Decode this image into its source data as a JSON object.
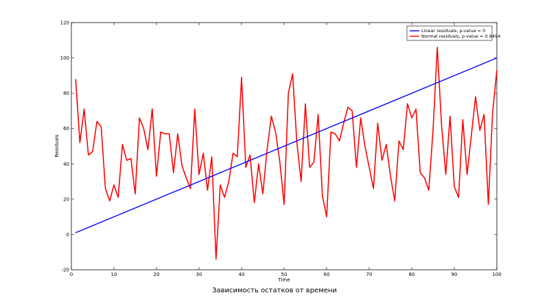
{
  "chart_data": {
    "type": "line",
    "title": "",
    "xlabel": "Time",
    "ylabel": "Residuals",
    "xlim": [
      0,
      100
    ],
    "ylim": [
      -20,
      120
    ],
    "x_ticks": [
      "0",
      "10",
      "20",
      "30",
      "40",
      "50",
      "60",
      "70",
      "80",
      "90",
      "100"
    ],
    "y_ticks": [
      "-20",
      "0",
      "20",
      "40",
      "60",
      "80",
      "100",
      "120"
    ],
    "grid": false,
    "legend_position": "top-right",
    "series": [
      {
        "name": "Linear residuals, p-value = 0",
        "color": "#0000ff",
        "x": [
          1,
          100
        ],
        "y": [
          1,
          100
        ]
      },
      {
        "name": "Normal residuals, p-value = 0.9494",
        "color": "#ff0000",
        "x": [
          1,
          2,
          3,
          4,
          5,
          6,
          7,
          8,
          9,
          10,
          11,
          12,
          13,
          14,
          15,
          16,
          17,
          18,
          19,
          20,
          21,
          22,
          23,
          24,
          25,
          26,
          27,
          28,
          29,
          30,
          31,
          32,
          33,
          34,
          35,
          36,
          37,
          38,
          39,
          40,
          41,
          42,
          43,
          44,
          45,
          46,
          47,
          48,
          49,
          50,
          51,
          52,
          53,
          54,
          55,
          56,
          57,
          58,
          59,
          60,
          61,
          62,
          63,
          64,
          65,
          66,
          67,
          68,
          69,
          70,
          71,
          72,
          73,
          74,
          75,
          76,
          77,
          78,
          79,
          80,
          81,
          82,
          83,
          84,
          85,
          86,
          87,
          88,
          89,
          90,
          91,
          92,
          93,
          94,
          95,
          96,
          97,
          98,
          99,
          100
        ],
        "y": [
          88,
          52,
          71,
          45,
          47,
          64,
          61,
          26,
          19,
          28,
          21,
          51,
          42,
          43,
          23,
          66,
          60,
          48,
          71,
          33,
          58,
          57,
          57,
          35,
          57,
          39,
          32,
          26,
          71,
          34,
          46,
          25,
          44,
          -14,
          28,
          21,
          30,
          46,
          44,
          89,
          38,
          45,
          18,
          40,
          23,
          48,
          67,
          58,
          41,
          17,
          80,
          91,
          52,
          30,
          74,
          38,
          41,
          68,
          22,
          10,
          58,
          57,
          53,
          63,
          72,
          70,
          38,
          66,
          50,
          38,
          26,
          63,
          42,
          51,
          33,
          19,
          53,
          48,
          74,
          66,
          71,
          35,
          32,
          25,
          59,
          106,
          62,
          34,
          67,
          27,
          21,
          65,
          34,
          56,
          78,
          59,
          68,
          17,
          69,
          93
        ]
      }
    ],
    "caption": "Зависимость остатков от времени"
  }
}
